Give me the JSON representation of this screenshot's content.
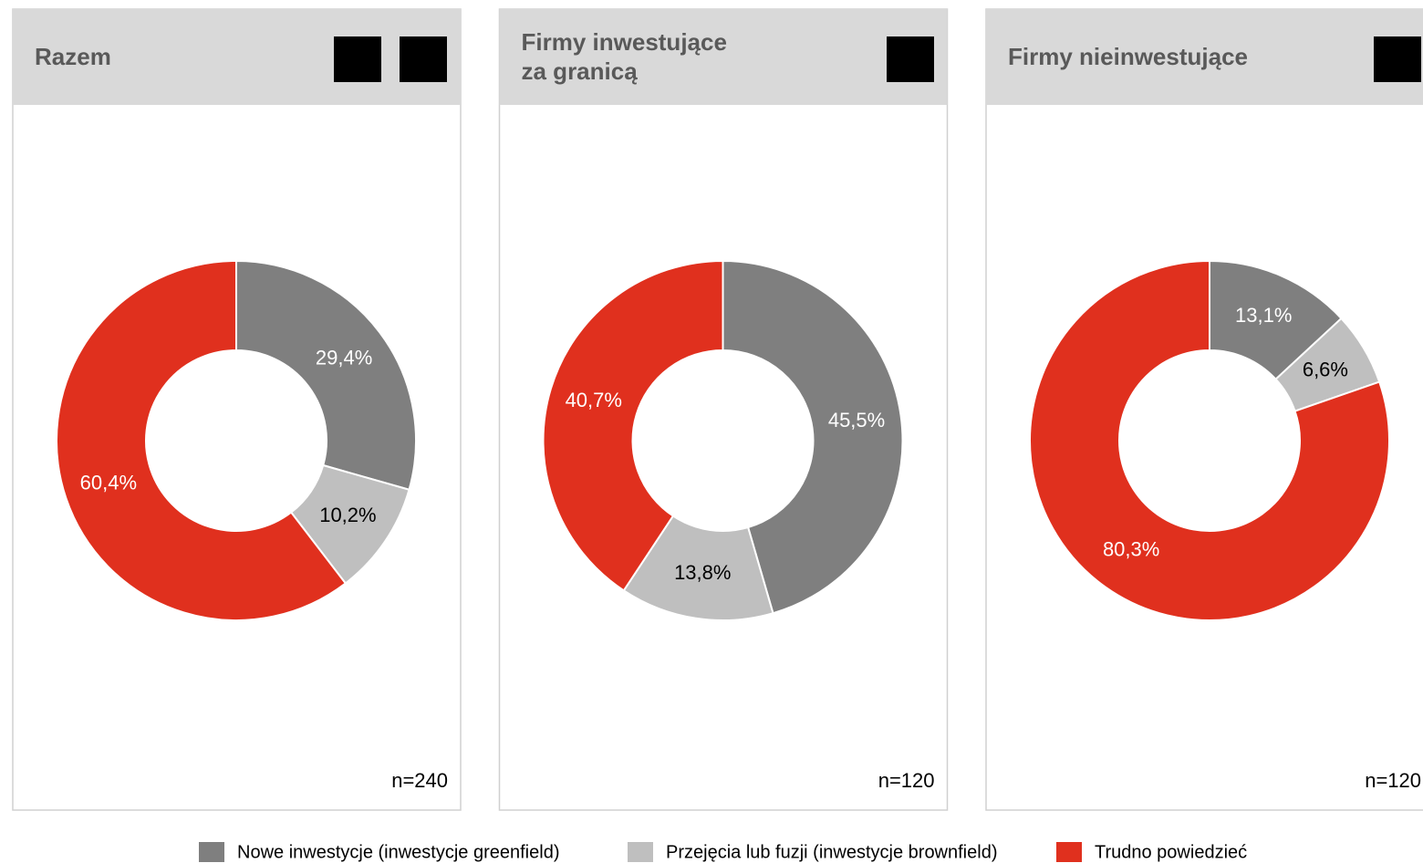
{
  "chart_data": [
    {
      "type": "pie",
      "title": [
        "Razem"
      ],
      "note": "n=240",
      "values": [
        29.4,
        10.2,
        60.4
      ],
      "value_labels": [
        "29,4%",
        "10,2%",
        "60,4%"
      ]
    },
    {
      "type": "pie",
      "title": [
        "Firmy inwestujące",
        "za granicą"
      ],
      "note": "n=120",
      "values": [
        45.5,
        13.8,
        40.7
      ],
      "value_labels": [
        "45,5%",
        "13,8%",
        "40,7%"
      ]
    },
    {
      "type": "pie",
      "title": [
        "Firmy nieinwestujące"
      ],
      "note": "n=120",
      "values": [
        13.1,
        6.6,
        80.3
      ],
      "value_labels": [
        "13,1%",
        "6,6%",
        "80,3%"
      ]
    }
  ],
  "legend": {
    "labels": [
      "Nowe inwestycje (inwestycje greenfield)",
      "Przejęcia lub fuzji (inwestycje brownfield)",
      "Trudno powiedzieć"
    ],
    "colors": [
      "#7f7f7f",
      "#bfbfbf",
      "#e0301e"
    ]
  }
}
